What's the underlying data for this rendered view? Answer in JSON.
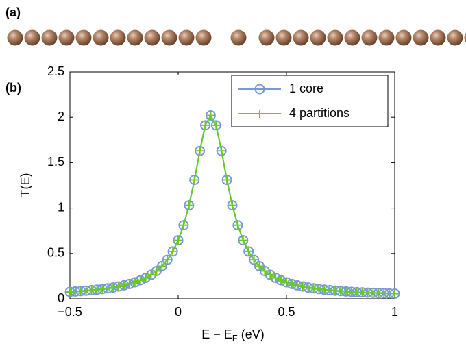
{
  "panel_a_label": "(a)",
  "chart_data": {
    "type": "line",
    "panel_label": "(b)",
    "xlabel": "E − E",
    "xlabel_sub": "F",
    "xlabel_unit": " (eV)",
    "ylabel": "T(E)",
    "x": [
      -0.5,
      -0.475,
      -0.45,
      -0.425,
      -0.4,
      -0.375,
      -0.35,
      -0.325,
      -0.3,
      -0.275,
      -0.25,
      -0.225,
      -0.2,
      -0.175,
      -0.15,
      -0.125,
      -0.1,
      -0.075,
      -0.05,
      -0.025,
      0,
      0.025,
      0.05,
      0.075,
      0.1,
      0.125,
      0.15,
      0.175,
      0.2,
      0.225,
      0.25,
      0.275,
      0.3,
      0.325,
      0.35,
      0.375,
      0.4,
      0.425,
      0.45,
      0.475,
      0.5,
      0.525,
      0.55,
      0.575,
      0.6,
      0.625,
      0.65,
      0.675,
      0.7,
      0.725,
      0.75,
      0.775,
      0.8,
      0.825,
      0.85,
      0.875,
      0.9,
      0.925,
      0.95,
      0.975,
      1
    ],
    "series": [
      {
        "name": "1 core",
        "color": "#7b96e0",
        "marker": "circle",
        "values": [
          0.076,
          0.08,
          0.084,
          0.089,
          0.094,
          0.1,
          0.107,
          0.115,
          0.124,
          0.135,
          0.148,
          0.163,
          0.181,
          0.203,
          0.23,
          0.264,
          0.306,
          0.36,
          0.43,
          0.522,
          0.645,
          0.811,
          1.03,
          1.31,
          1.63,
          1.912,
          2.02,
          1.912,
          1.63,
          1.31,
          1.03,
          0.811,
          0.645,
          0.522,
          0.43,
          0.36,
          0.306,
          0.264,
          0.23,
          0.203,
          0.181,
          0.163,
          0.148,
          0.135,
          0.124,
          0.115,
          0.107,
          0.1,
          0.094,
          0.089,
          0.084,
          0.08,
          0.076,
          0.073,
          0.07,
          0.067,
          0.065,
          0.063,
          0.061,
          0.059,
          0.057
        ]
      },
      {
        "name": "4 partitions",
        "color": "#66cc22",
        "marker": "plus",
        "values": [
          0.076,
          0.08,
          0.084,
          0.089,
          0.094,
          0.1,
          0.107,
          0.115,
          0.124,
          0.135,
          0.148,
          0.163,
          0.181,
          0.203,
          0.23,
          0.264,
          0.306,
          0.36,
          0.43,
          0.522,
          0.645,
          0.811,
          1.03,
          1.31,
          1.63,
          1.912,
          2.02,
          1.912,
          1.63,
          1.31,
          1.03,
          0.811,
          0.645,
          0.522,
          0.43,
          0.36,
          0.306,
          0.264,
          0.23,
          0.203,
          0.181,
          0.163,
          0.148,
          0.135,
          0.124,
          0.115,
          0.107,
          0.1,
          0.094,
          0.089,
          0.084,
          0.08,
          0.076,
          0.073,
          0.07,
          0.067,
          0.065,
          0.063,
          0.061,
          0.059,
          0.057
        ]
      }
    ],
    "xlim": [
      -0.5,
      1
    ],
    "xticks": [
      {
        "value": -0.5,
        "label": "−0.5"
      },
      0,
      0.5,
      1
    ],
    "ylim": [
      0,
      2.5
    ],
    "yticks": [
      0,
      0.5,
      1,
      1.5,
      2,
      2.5
    ],
    "legend": "upper right"
  }
}
